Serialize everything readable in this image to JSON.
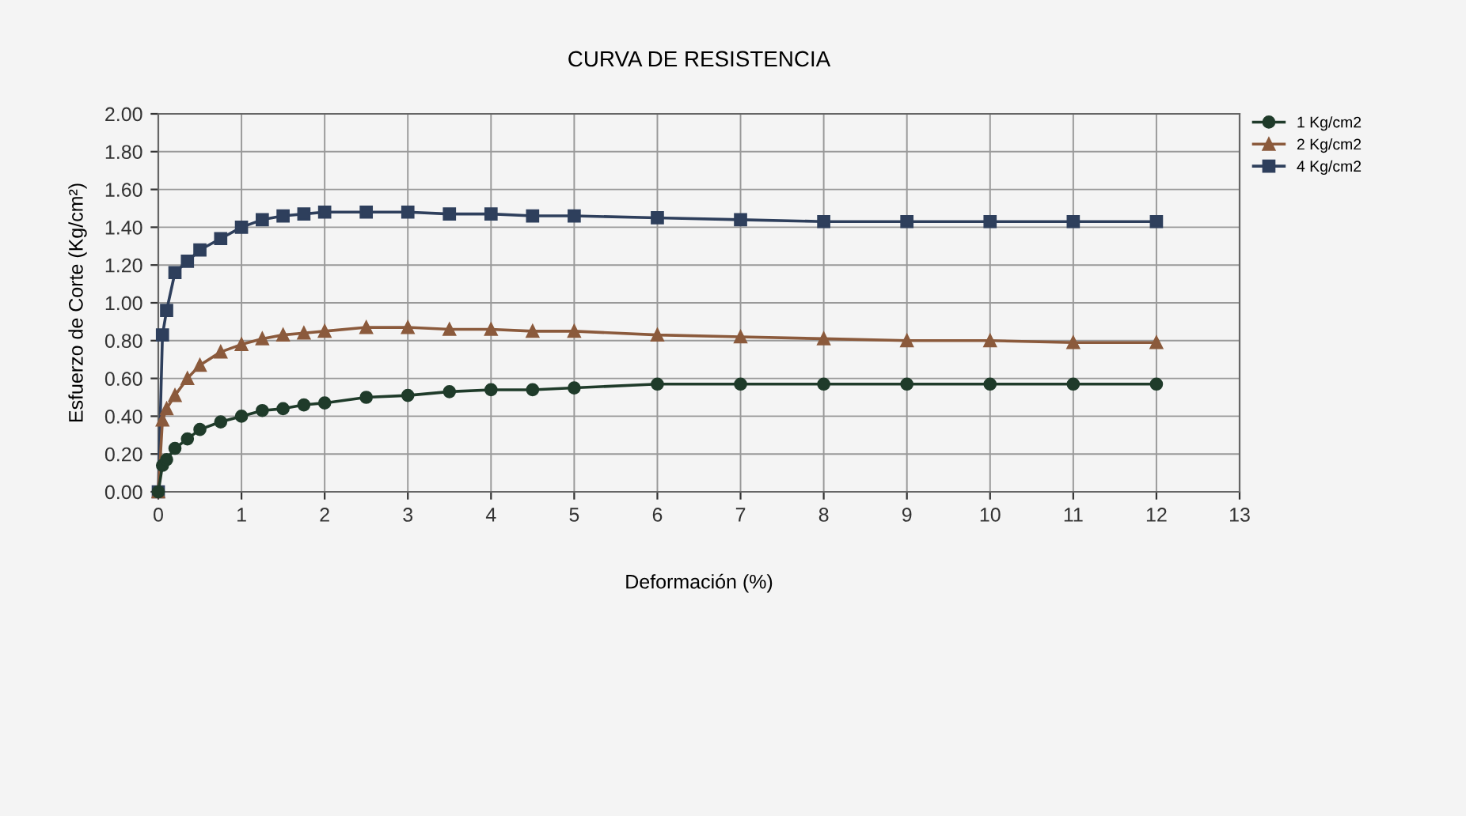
{
  "chart_data": {
    "type": "line",
    "title": "CURVA DE RESISTENCIA",
    "xlabel": "Deformación (%)",
    "ylabel": "Esfuerzo de Corte (Kg/cm²)",
    "x": [
      0,
      0.05,
      0.1,
      0.2,
      0.35,
      0.5,
      0.75,
      1,
      1.25,
      1.5,
      1.75,
      2,
      2.5,
      3,
      3.5,
      4,
      4.5,
      5,
      6,
      7,
      8,
      9,
      10,
      11,
      12
    ],
    "series": [
      {
        "name": "1 Kg/cm2",
        "color": "#1f3b2a",
        "marker": "circle",
        "values": [
          0,
          0.14,
          0.17,
          0.23,
          0.28,
          0.33,
          0.37,
          0.4,
          0.43,
          0.44,
          0.46,
          0.47,
          0.5,
          0.51,
          0.53,
          0.54,
          0.54,
          0.55,
          0.57,
          0.57,
          0.57,
          0.57,
          0.57,
          0.57,
          0.57
        ]
      },
      {
        "name": "2 Kg/cm2",
        "color": "#8b5a3c",
        "marker": "triangle",
        "values": [
          0,
          0.38,
          0.44,
          0.51,
          0.6,
          0.67,
          0.74,
          0.78,
          0.81,
          0.83,
          0.84,
          0.85,
          0.87,
          0.87,
          0.86,
          0.86,
          0.85,
          0.85,
          0.83,
          0.82,
          0.81,
          0.8,
          0.8,
          0.79,
          0.79
        ]
      },
      {
        "name": "4 Kg/cm2",
        "color": "#2e3f5c",
        "marker": "square",
        "values": [
          0,
          0.83,
          0.96,
          1.16,
          1.22,
          1.28,
          1.34,
          1.4,
          1.44,
          1.46,
          1.47,
          1.48,
          1.48,
          1.48,
          1.47,
          1.47,
          1.46,
          1.46,
          1.45,
          1.44,
          1.43,
          1.43,
          1.43,
          1.43,
          1.43
        ]
      }
    ],
    "xlim": [
      0,
      13
    ],
    "xticks": [
      0,
      1,
      2,
      3,
      4,
      5,
      6,
      7,
      8,
      9,
      10,
      11,
      12,
      13
    ],
    "ylim": [
      0,
      2
    ],
    "yticks": [
      {
        "value": 0,
        "label": "0.00"
      },
      {
        "value": 0.2,
        "label": "0.20"
      },
      {
        "value": 0.4,
        "label": "0.40"
      },
      {
        "value": 0.6,
        "label": "0.60"
      },
      {
        "value": 0.8,
        "label": "0.80"
      },
      {
        "value": 1.0,
        "label": "1.00"
      },
      {
        "value": 1.2,
        "label": "1.20"
      },
      {
        "value": 1.4,
        "label": "1.40"
      },
      {
        "value": 1.6,
        "label": "1.60"
      },
      {
        "value": 1.8,
        "label": "1.80"
      },
      {
        "value": 2.0,
        "label": "2.00"
      }
    ],
    "grid": true,
    "legend": "top right"
  }
}
